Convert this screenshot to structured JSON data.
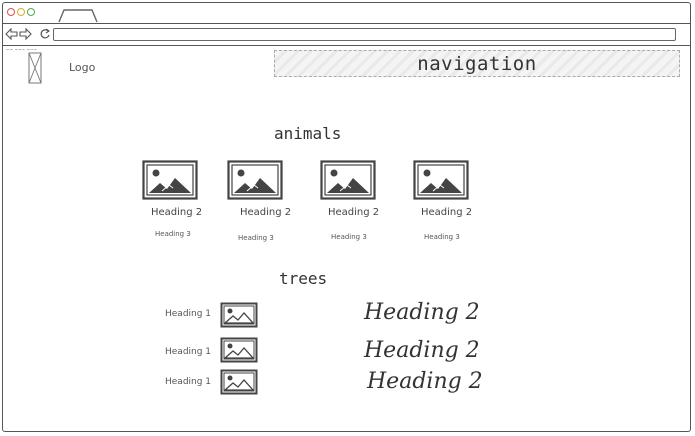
{
  "browser": {
    "url": "",
    "back_icon": "back-arrow-icon",
    "forward_icon": "forward-arrow-icon",
    "reload_icon": "reload-icon"
  },
  "header": {
    "tiny_text": "~~ ~~~ ~~~",
    "logo_label": "Logo",
    "navigation_label": "navigation"
  },
  "animals": {
    "title": "animals",
    "items": [
      {
        "heading2": "Heading 2",
        "heading3": "Heading 3"
      },
      {
        "heading2": "Heading 2",
        "heading3": "Heading 3"
      },
      {
        "heading2": "Heading 2",
        "heading3": "Heading 3"
      },
      {
        "heading2": "Heading 2",
        "heading3": "Heading 3"
      }
    ]
  },
  "trees": {
    "title": "trees",
    "rows": [
      {
        "heading1": "Heading 1",
        "heading2": "Heading 2"
      },
      {
        "heading1": "Heading 1",
        "heading2": "Heading 2"
      },
      {
        "heading1": "Heading 1",
        "heading2": "Heading 2"
      }
    ]
  },
  "colors": {
    "dot_red": "#d9534f",
    "dot_yellow": "#e3a82b",
    "dot_green": "#4cae4c",
    "sketch": "#444444"
  }
}
